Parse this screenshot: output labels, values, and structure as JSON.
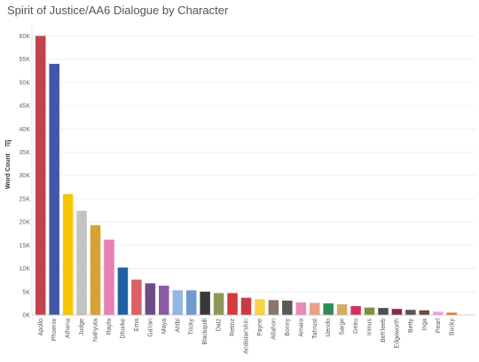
{
  "chart_data": {
    "type": "bar",
    "title": "Spirit of Justice/AA6 Dialogue by Character",
    "ylabel": "Word Count",
    "sort_icon": "sort-descending-icon",
    "ylim": [
      0,
      62000
    ],
    "yticks": [
      0,
      5000,
      10000,
      15000,
      20000,
      25000,
      30000,
      35000,
      40000,
      45000,
      50000,
      55000,
      60000
    ],
    "ytick_labels": [
      "0K",
      "5K",
      "10K",
      "15K",
      "20K",
      "25K",
      "30K",
      "35K",
      "40K",
      "45K",
      "50K",
      "55K",
      "60K"
    ],
    "grid": true,
    "categories": [
      "Apollo",
      "Phoenix",
      "Athena",
      "Judge",
      "Nahyuta",
      "Rayfa",
      "Dhurke",
      "Ema",
      "Ga'ran",
      "Maya",
      "Ahlbi",
      "Tricky",
      "Blackquill",
      "Datz",
      "Retinz",
      "Andistar'shin",
      "Payne",
      "Atlahon",
      "Bonny",
      "Amara",
      "Tahrust",
      "Uendo",
      "Sarge",
      "Geiru",
      "Inmus",
      "Beh'leeb",
      "Edgeworth",
      "Betty",
      "Inga",
      "Pearl",
      "Bucky"
    ],
    "values": [
      60000,
      54000,
      26000,
      22400,
      19300,
      16200,
      10200,
      7600,
      6800,
      6300,
      5300,
      5300,
      5000,
      4700,
      4700,
      3700,
      3400,
      3200,
      3100,
      2700,
      2600,
      2500,
      2300,
      1900,
      1600,
      1500,
      1300,
      1100,
      1000,
      700,
      500
    ],
    "colors": [
      "#c0434a",
      "#4257a6",
      "#f7c600",
      "#c3c3c3",
      "#d6a233",
      "#ea7fb4",
      "#2160a4",
      "#dc6065",
      "#6c4b86",
      "#8a5ba5",
      "#8fb8e2",
      "#6e9ad1",
      "#383838",
      "#8a9a58",
      "#d43a3a",
      "#c83a44",
      "#fbd248",
      "#8b7669",
      "#585858",
      "#e889b8",
      "#e99f8a",
      "#2e8a5a",
      "#d7ab60",
      "#d23060",
      "#7a9143",
      "#4f4f4f",
      "#8c2a42",
      "#555555",
      "#6b4a3a",
      "#ef9cee",
      "#e0761e"
    ]
  }
}
